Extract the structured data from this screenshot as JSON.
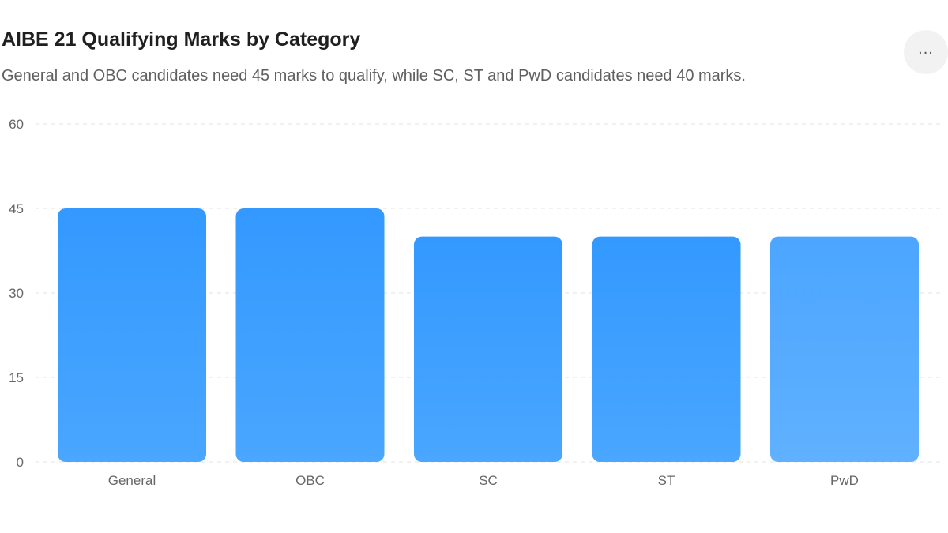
{
  "header": {
    "title": "AIBE 21 Qualifying Marks by Category",
    "subtitle": "General and OBC candidates need 45 marks to qualify, while SC, ST and PwD candidates need 40 marks.",
    "menu_icon": "more-horizontal-icon",
    "menu_glyph": "..."
  },
  "colors": {
    "bar_top": "#3399ff",
    "bar_bottom": "#4aa6ff",
    "grid": "#e3e3e3"
  },
  "chart_data": {
    "type": "bar",
    "title": "AIBE 21 Qualifying Marks by Category",
    "subtitle": "General and OBC candidates need 45 marks to qualify, while SC, ST and PwD candidates need 40 marks.",
    "categories": [
      "General",
      "OBC",
      "SC",
      "ST",
      "PwD"
    ],
    "values": [
      45,
      45,
      40,
      40,
      40
    ],
    "xlabel": "",
    "ylabel": "",
    "ylim": [
      0,
      60
    ],
    "yticks": [
      0,
      15,
      30,
      45,
      60
    ],
    "grid": true,
    "legend": "none"
  }
}
